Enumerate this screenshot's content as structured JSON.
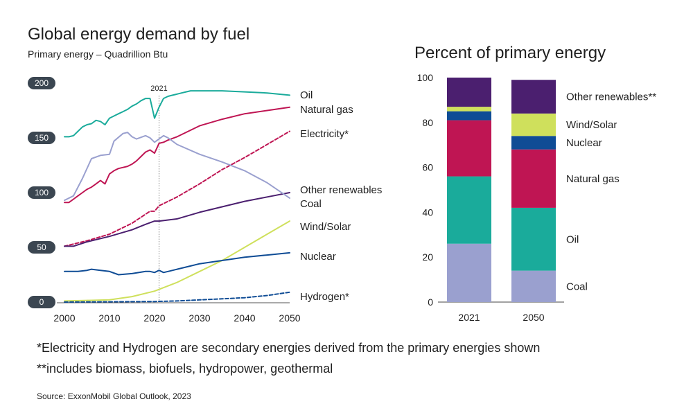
{
  "chart_data": [
    {
      "type": "line",
      "title": "Global energy demand by fuel",
      "subtitle": "Primary energy – Quadrillion Btu",
      "xlabel": "",
      "ylabel": "",
      "xlim": [
        2000,
        2050
      ],
      "ylim": [
        0,
        200
      ],
      "x_ticks": [
        "2000",
        "2010",
        "2020",
        "2030",
        "2040",
        "2050"
      ],
      "y_ticks": [
        "0",
        "50",
        "100",
        "150",
        "200"
      ],
      "marker": {
        "x": 2021,
        "label": "2021"
      },
      "grid": false,
      "legend": "right-end labels",
      "series": [
        {
          "name": "Oil",
          "color": "#1aab9b",
          "dashed": false,
          "points": [
            [
              2000,
              151
            ],
            [
              2001,
              151
            ],
            [
              2002,
              152
            ],
            [
              2003,
              156
            ],
            [
              2004,
              160
            ],
            [
              2005,
              162
            ],
            [
              2006,
              163
            ],
            [
              2007,
              166
            ],
            [
              2008,
              165
            ],
            [
              2009,
              162
            ],
            [
              2010,
              168
            ],
            [
              2011,
              170
            ],
            [
              2012,
              172
            ],
            [
              2013,
              174
            ],
            [
              2014,
              176
            ],
            [
              2015,
              179
            ],
            [
              2016,
              181
            ],
            [
              2017,
              184
            ],
            [
              2018,
              186
            ],
            [
              2019,
              186
            ],
            [
              2020,
              168
            ],
            [
              2021,
              178
            ],
            [
              2022,
              186
            ],
            [
              2023,
              188
            ],
            [
              2024,
              189
            ],
            [
              2025,
              190
            ],
            [
              2026,
              191
            ],
            [
              2027,
              192
            ],
            [
              2028,
              193
            ],
            [
              2030,
              193
            ],
            [
              2035,
              193
            ],
            [
              2040,
              192
            ],
            [
              2045,
              191
            ],
            [
              2050,
              189
            ]
          ]
        },
        {
          "name": "Natural gas",
          "color": "#bf1553",
          "dashed": false,
          "points": [
            [
              2000,
              91
            ],
            [
              2001,
              91
            ],
            [
              2002,
              94
            ],
            [
              2003,
              97
            ],
            [
              2004,
              100
            ],
            [
              2005,
              103
            ],
            [
              2006,
              105
            ],
            [
              2007,
              108
            ],
            [
              2008,
              111
            ],
            [
              2009,
              108
            ],
            [
              2010,
              117
            ],
            [
              2011,
              120
            ],
            [
              2012,
              122
            ],
            [
              2013,
              123
            ],
            [
              2014,
              124
            ],
            [
              2015,
              126
            ],
            [
              2016,
              129
            ],
            [
              2017,
              133
            ],
            [
              2018,
              137
            ],
            [
              2019,
              139
            ],
            [
              2020,
              136
            ],
            [
              2021,
              145
            ],
            [
              2022,
              146
            ],
            [
              2023,
              148
            ],
            [
              2025,
              151
            ],
            [
              2030,
              161
            ],
            [
              2035,
              167
            ],
            [
              2040,
              172
            ],
            [
              2045,
              175
            ],
            [
              2050,
              178
            ]
          ]
        },
        {
          "name": "Electricity*",
          "color": "#bf1553",
          "dashed": true,
          "points": [
            [
              2000,
              51
            ],
            [
              2005,
              56
            ],
            [
              2010,
              62
            ],
            [
              2015,
              72
            ],
            [
              2019,
              83
            ],
            [
              2020,
              83
            ],
            [
              2021,
              88
            ],
            [
              2025,
              96
            ],
            [
              2030,
              108
            ],
            [
              2035,
              121
            ],
            [
              2040,
              132
            ],
            [
              2045,
              144
            ],
            [
              2050,
              156
            ]
          ]
        },
        {
          "name": "Other renewables",
          "color": "#4b1f6f",
          "dashed": false,
          "points": [
            [
              2000,
              51
            ],
            [
              2002,
              51
            ],
            [
              2005,
              55
            ],
            [
              2010,
              60
            ],
            [
              2015,
              66
            ],
            [
              2018,
              71
            ],
            [
              2020,
              74
            ],
            [
              2021,
              74
            ],
            [
              2025,
              76
            ],
            [
              2030,
              82
            ],
            [
              2035,
              87
            ],
            [
              2040,
              92
            ],
            [
              2045,
              96
            ],
            [
              2050,
              100
            ]
          ]
        },
        {
          "name": "Coal",
          "color": "#9aa0cf",
          "dashed": false,
          "points": [
            [
              2000,
              93
            ],
            [
              2002,
              97
            ],
            [
              2004,
              113
            ],
            [
              2006,
              131
            ],
            [
              2008,
              134
            ],
            [
              2010,
              135
            ],
            [
              2011,
              147
            ],
            [
              2013,
              154
            ],
            [
              2014,
              155
            ],
            [
              2015,
              151
            ],
            [
              2016,
              149
            ],
            [
              2018,
              152
            ],
            [
              2019,
              150
            ],
            [
              2020,
              146
            ],
            [
              2021,
              149
            ],
            [
              2022,
              152
            ],
            [
              2023,
              150
            ],
            [
              2025,
              144
            ],
            [
              2030,
              135
            ],
            [
              2035,
              128
            ],
            [
              2040,
              120
            ],
            [
              2045,
              109
            ],
            [
              2050,
              95
            ]
          ]
        },
        {
          "name": "Wind/Solar",
          "color": "#cfe05c",
          "dashed": false,
          "points": [
            [
              2000,
              1
            ],
            [
              2005,
              1.5
            ],
            [
              2010,
              2
            ],
            [
              2015,
              5
            ],
            [
              2020,
              10
            ],
            [
              2025,
              18
            ],
            [
              2030,
              28
            ],
            [
              2035,
              38
            ],
            [
              2040,
              50
            ],
            [
              2045,
              62
            ],
            [
              2050,
              74
            ]
          ]
        },
        {
          "name": "Nuclear",
          "color": "#0f4c95",
          "dashed": false,
          "points": [
            [
              2000,
              28
            ],
            [
              2003,
              28
            ],
            [
              2005,
              29
            ],
            [
              2006,
              30
            ],
            [
              2008,
              29
            ],
            [
              2010,
              28
            ],
            [
              2012,
              25
            ],
            [
              2015,
              26
            ],
            [
              2018,
              28
            ],
            [
              2019,
              28
            ],
            [
              2020,
              27
            ],
            [
              2021,
              29
            ],
            [
              2022,
              27
            ],
            [
              2023,
              28
            ],
            [
              2025,
              30
            ],
            [
              2028,
              33
            ],
            [
              2030,
              35
            ],
            [
              2035,
              38
            ],
            [
              2040,
              41
            ],
            [
              2045,
              43
            ],
            [
              2050,
              45
            ]
          ]
        },
        {
          "name": "Hydrogen*",
          "color": "#0f4c95",
          "dashed": true,
          "points": [
            [
              2000,
              0
            ],
            [
              2020,
              0.5
            ],
            [
              2025,
              1
            ],
            [
              2030,
              2
            ],
            [
              2035,
              3
            ],
            [
              2040,
              4
            ],
            [
              2045,
              6
            ],
            [
              2050,
              9
            ]
          ]
        }
      ]
    },
    {
      "type": "bar",
      "stacked": true,
      "title": "Percent of primary energy",
      "xlabel": "",
      "ylabel": "",
      "ylim": [
        0,
        100
      ],
      "y_ticks": [
        "0",
        "20",
        "40",
        "60",
        "80",
        "100"
      ],
      "categories": [
        "2021",
        "2050"
      ],
      "grid": false,
      "legend": "right",
      "series": [
        {
          "name": "Coal",
          "color": "#9aa0cf",
          "values": [
            26,
            14
          ]
        },
        {
          "name": "Oil",
          "color": "#1aab9b",
          "values": [
            30,
            28
          ]
        },
        {
          "name": "Natural gas",
          "color": "#bf1553",
          "values": [
            25,
            26
          ]
        },
        {
          "name": "Nuclear",
          "color": "#0f4c95",
          "values": [
            4,
            6
          ]
        },
        {
          "name": "Wind/Solar",
          "color": "#cfe05c",
          "values": [
            2,
            10
          ]
        },
        {
          "name": "Other renewables",
          "color": "#4b1f6f",
          "values": [
            13,
            15
          ]
        }
      ]
    }
  ],
  "footnotes": {
    "line1": "*Electricity and Hydrogen are secondary energies derived from the primary energies shown",
    "line2": "**includes biomass, biofuels, hydropower, geothermal",
    "source": "Source: ExxonMobil Global Outlook, 2023"
  }
}
